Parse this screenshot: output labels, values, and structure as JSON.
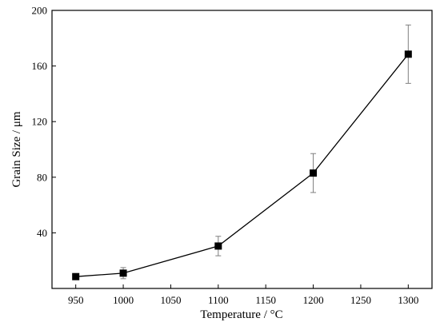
{
  "chart_data": {
    "type": "line",
    "title": "",
    "xlabel": "Temperature / °C",
    "ylabel": "Grain Size / μm",
    "xlim": [
      925,
      1325
    ],
    "ylim": [
      0,
      200
    ],
    "x_ticks": [
      950,
      1000,
      1050,
      1100,
      1150,
      1200,
      1250,
      1300
    ],
    "y_ticks": [
      40,
      80,
      120,
      160,
      200
    ],
    "grid": false,
    "legend": false,
    "series": [
      {
        "x": [
          950,
          1000,
          1100,
          1200,
          1300
        ],
        "y": [
          8.5,
          11,
          30.5,
          83,
          168.5
        ],
        "error": [
          1.5,
          4,
          7,
          14,
          21
        ],
        "marker": "square",
        "color": "#000000"
      }
    ]
  }
}
